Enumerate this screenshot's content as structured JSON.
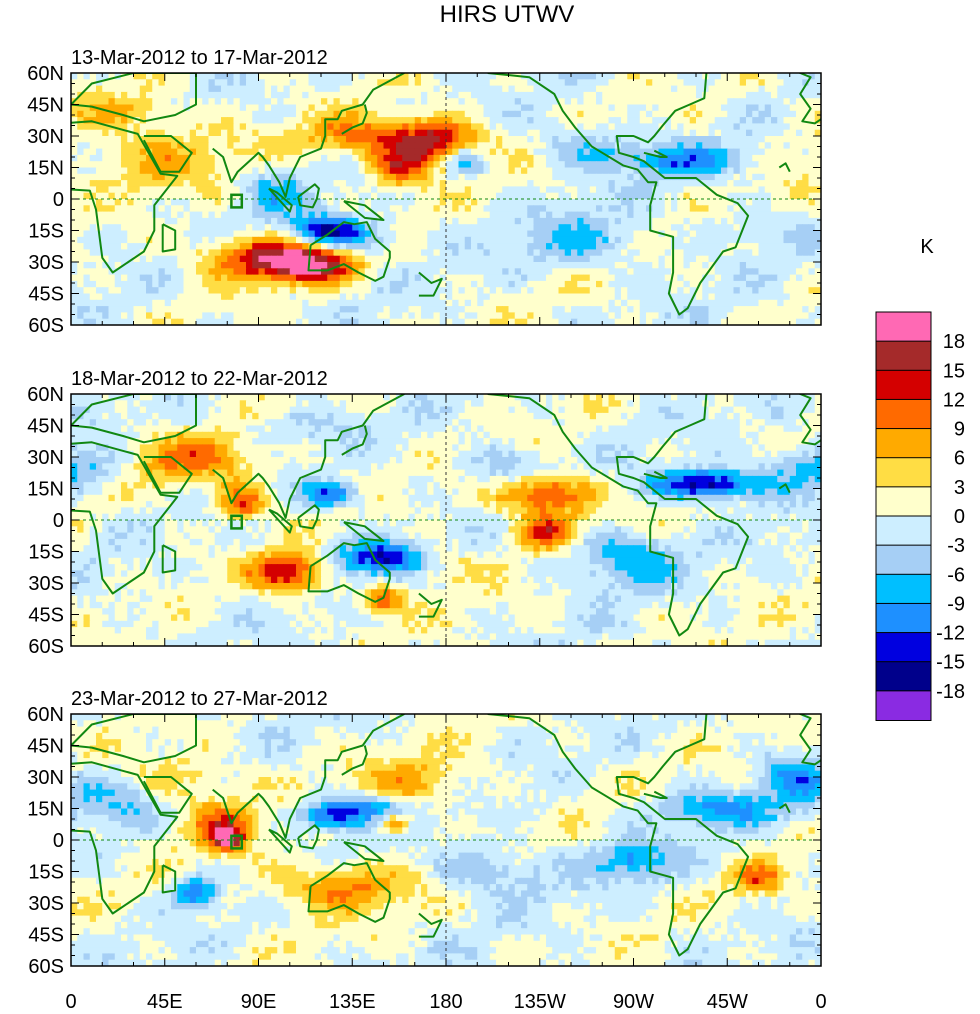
{
  "chart_data": {
    "type": "heatmap",
    "title": "HIRS UTWV",
    "units_label": "K",
    "x_tick_labels": [
      "0",
      "45E",
      "90E",
      "135E",
      "180",
      "135W",
      "90W",
      "45W",
      "0"
    ],
    "x_ticks_lon": [
      0,
      45,
      90,
      135,
      180,
      225,
      270,
      315,
      360
    ],
    "y_tick_labels": [
      "60N",
      "45N",
      "30N",
      "15N",
      "0",
      "15S",
      "30S",
      "45S",
      "60S"
    ],
    "y_ticks_lat": [
      60,
      45,
      30,
      15,
      0,
      -15,
      -30,
      -45,
      -60
    ],
    "xlim": [
      0,
      360
    ],
    "ylim": [
      -60,
      60
    ],
    "colorbar": {
      "labels": [
        "18",
        "15",
        "12",
        "9",
        "6",
        "3",
        "0",
        "-3",
        "-6",
        "-9",
        "-12",
        "-15",
        "-18"
      ],
      "levels": [
        18,
        15,
        12,
        9,
        6,
        3,
        0,
        -3,
        -6,
        -9,
        -12,
        -15,
        -18
      ],
      "colors": [
        "#ff69b4",
        "#a52a2a",
        "#d40000",
        "#ff6a00",
        "#ffaa00",
        "#ffdd44",
        "#ffffcc",
        "#cdeeff",
        "#a6cff5",
        "#00bfff",
        "#1e90ff",
        "#0000e0",
        "#00008b",
        "#8a2be2"
      ]
    },
    "panels": [
      {
        "name": "panel-1",
        "label": "13-Mar-2012 to 17-Mar-2012",
        "blobs": [
          {
            "lon": 95,
            "lat": -28,
            "v": 15,
            "rx": 32,
            "ry": 10
          },
          {
            "lon": 115,
            "lat": -32,
            "v": 12,
            "rx": 20,
            "ry": 8
          },
          {
            "lon": 175,
            "lat": 28,
            "v": 15,
            "rx": 22,
            "ry": 10
          },
          {
            "lon": 158,
            "lat": 15,
            "v": 12,
            "rx": 15,
            "ry": 9
          },
          {
            "lon": 140,
            "lat": 30,
            "v": 9,
            "rx": 28,
            "ry": 10
          },
          {
            "lon": 40,
            "lat": 20,
            "v": 6,
            "rx": 40,
            "ry": 14
          },
          {
            "lon": 25,
            "lat": 42,
            "v": 6,
            "rx": 30,
            "ry": 10
          },
          {
            "lon": 120,
            "lat": -15,
            "v": -15,
            "rx": 15,
            "ry": 8
          },
          {
            "lon": 140,
            "lat": -18,
            "v": -9,
            "rx": 16,
            "ry": 7
          },
          {
            "lon": 190,
            "lat": 18,
            "v": -9,
            "rx": 9,
            "ry": 7
          },
          {
            "lon": 245,
            "lat": -20,
            "v": -6,
            "rx": 30,
            "ry": 12
          },
          {
            "lon": 295,
            "lat": 18,
            "v": -9,
            "rx": 30,
            "ry": 7
          },
          {
            "lon": 250,
            "lat": 25,
            "v": -6,
            "rx": 25,
            "ry": 10
          },
          {
            "lon": 97,
            "lat": 5,
            "v": -6,
            "rx": 15,
            "ry": 12
          },
          {
            "lon": 330,
            "lat": -15,
            "v": -3,
            "rx": 25,
            "ry": 8
          }
        ]
      },
      {
        "name": "panel-2",
        "label": "18-Mar-2012 to 22-Mar-2012",
        "blobs": [
          {
            "lon": 228,
            "lat": 12,
            "v": 15,
            "rx": 22,
            "ry": 10
          },
          {
            "lon": 228,
            "lat": -6,
            "v": 12,
            "rx": 14,
            "ry": 8
          },
          {
            "lon": 105,
            "lat": -25,
            "v": 15,
            "rx": 18,
            "ry": 9
          },
          {
            "lon": 150,
            "lat": -38,
            "v": 12,
            "rx": 10,
            "ry": 7
          },
          {
            "lon": 82,
            "lat": 8,
            "v": 12,
            "rx": 12,
            "ry": 8
          },
          {
            "lon": 60,
            "lat": 28,
            "v": 9,
            "rx": 30,
            "ry": 12
          },
          {
            "lon": 175,
            "lat": -20,
            "v": 6,
            "rx": 18,
            "ry": 10
          },
          {
            "lon": 305,
            "lat": 17,
            "v": -18,
            "rx": 25,
            "ry": 7
          },
          {
            "lon": 150,
            "lat": -18,
            "v": -15,
            "rx": 24,
            "ry": 8
          },
          {
            "lon": 125,
            "lat": 12,
            "v": -12,
            "rx": 13,
            "ry": 6
          },
          {
            "lon": 265,
            "lat": -18,
            "v": -9,
            "rx": 25,
            "ry": 12
          },
          {
            "lon": 210,
            "lat": 25,
            "v": -6,
            "rx": 20,
            "ry": 9
          },
          {
            "lon": 10,
            "lat": 25,
            "v": -6,
            "rx": 20,
            "ry": 10
          },
          {
            "lon": 345,
            "lat": 25,
            "v": -6,
            "rx": 18,
            "ry": 10
          },
          {
            "lon": 110,
            "lat": 45,
            "v": -3,
            "rx": 30,
            "ry": 8
          }
        ]
      },
      {
        "name": "panel-3",
        "label": "23-Mar-2012 to 27-Mar-2012",
        "blobs": [
          {
            "lon": 75,
            "lat": 0,
            "v": 15,
            "rx": 8,
            "ry": 6
          },
          {
            "lon": 72,
            "lat": 8,
            "v": 9,
            "rx": 18,
            "ry": 10
          },
          {
            "lon": 155,
            "lat": 8,
            "v": 12,
            "rx": 8,
            "ry": 5
          },
          {
            "lon": 130,
            "lat": -22,
            "v": 9,
            "rx": 35,
            "ry": 12
          },
          {
            "lon": 165,
            "lat": 28,
            "v": 6,
            "rx": 30,
            "ry": 12
          },
          {
            "lon": 330,
            "lat": -18,
            "v": 9,
            "rx": 12,
            "ry": 8
          },
          {
            "lon": 55,
            "lat": 28,
            "v": 6,
            "rx": 30,
            "ry": 12
          },
          {
            "lon": 125,
            "lat": 12,
            "v": -15,
            "rx": 14,
            "ry": 7
          },
          {
            "lon": 145,
            "lat": 15,
            "v": -9,
            "rx": 16,
            "ry": 7
          },
          {
            "lon": 60,
            "lat": -25,
            "v": -12,
            "rx": 10,
            "ry": 7
          },
          {
            "lon": 310,
            "lat": 15,
            "v": -9,
            "rx": 30,
            "ry": 8
          },
          {
            "lon": 270,
            "lat": -10,
            "v": -9,
            "rx": 18,
            "ry": 9
          },
          {
            "lon": 200,
            "lat": -15,
            "v": -6,
            "rx": 30,
            "ry": 12
          },
          {
            "lon": 20,
            "lat": 20,
            "v": -6,
            "rx": 25,
            "ry": 12
          },
          {
            "lon": 345,
            "lat": 30,
            "v": -9,
            "rx": 14,
            "ry": 10
          }
        ]
      }
    ]
  }
}
